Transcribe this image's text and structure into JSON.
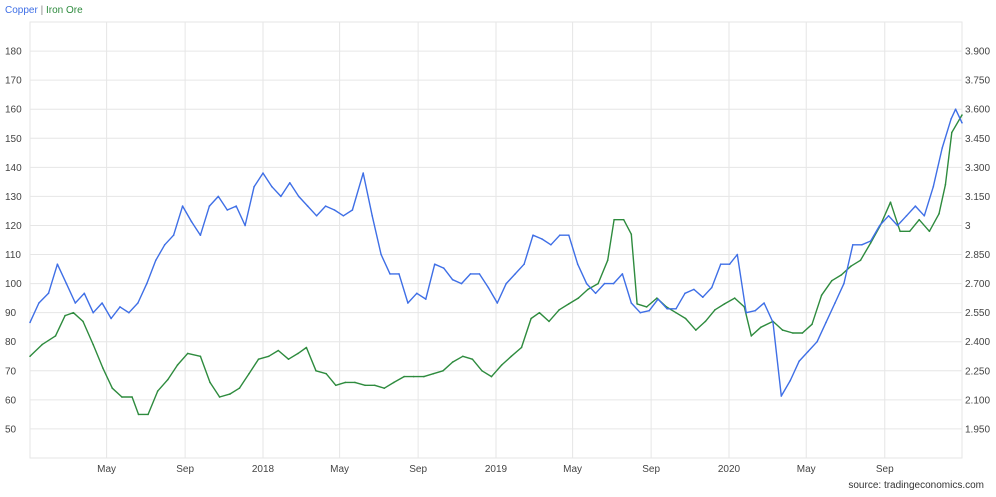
{
  "legend": {
    "series_a": "Copper",
    "separator": "|",
    "series_b": "Iron Ore"
  },
  "source": "source: tradingeconomics.com",
  "colors": {
    "copper": "#3f6fe6",
    "iron_ore": "#2e8b3e",
    "grid": "#e6e6e6"
  },
  "chart_data": {
    "type": "line",
    "grid": true,
    "legend_position": "top-left",
    "x_ticks": [
      "May",
      "Sep",
      "2018",
      "May",
      "Sep",
      "2019",
      "May",
      "Sep",
      "2020",
      "May",
      "Sep"
    ],
    "x_tick_dates": [
      "2017-05-01",
      "2017-09-01",
      "2018-01-01",
      "2018-05-01",
      "2018-09-01",
      "2019-01-01",
      "2019-05-01",
      "2019-09-01",
      "2020-01-01",
      "2020-05-01",
      "2020-09-01"
    ],
    "x_range": [
      "2017-01-01",
      "2020-12-31"
    ],
    "left_axis": {
      "ticks": [
        "50",
        "60",
        "70",
        "80",
        "90",
        "100",
        "110",
        "120",
        "130",
        "140",
        "150",
        "160",
        "170",
        "180"
      ],
      "ylim": [
        40,
        190
      ]
    },
    "right_axis": {
      "ticks": [
        "1.950",
        "2.100",
        "2.250",
        "2.400",
        "2.550",
        "2.700",
        "2.850",
        "3",
        "3.150",
        "3.300",
        "3.450",
        "3.600",
        "3.750",
        "3.900"
      ],
      "ylim": [
        1.8,
        4.05
      ]
    },
    "series": [
      {
        "name": "Iron Ore",
        "axis": "left",
        "points": [
          [
            "2017-01-01",
            75
          ],
          [
            "2017-01-20",
            79
          ],
          [
            "2017-02-10",
            82
          ],
          [
            "2017-02-25",
            89
          ],
          [
            "2017-03-10",
            90
          ],
          [
            "2017-03-25",
            87
          ],
          [
            "2017-04-10",
            79
          ],
          [
            "2017-04-25",
            71
          ],
          [
            "2017-05-10",
            64
          ],
          [
            "2017-05-25",
            61
          ],
          [
            "2017-06-10",
            61
          ],
          [
            "2017-06-20",
            55
          ],
          [
            "2017-07-05",
            55
          ],
          [
            "2017-07-20",
            63
          ],
          [
            "2017-08-05",
            67
          ],
          [
            "2017-08-20",
            72
          ],
          [
            "2017-09-05",
            76
          ],
          [
            "2017-09-25",
            75
          ],
          [
            "2017-10-10",
            66
          ],
          [
            "2017-10-25",
            61
          ],
          [
            "2017-11-10",
            62
          ],
          [
            "2017-11-25",
            64
          ],
          [
            "2017-12-10",
            69
          ],
          [
            "2017-12-25",
            74
          ],
          [
            "2018-01-10",
            75
          ],
          [
            "2018-01-25",
            77
          ],
          [
            "2018-02-10",
            74
          ],
          [
            "2018-02-25",
            76
          ],
          [
            "2018-03-10",
            78
          ],
          [
            "2018-03-25",
            70
          ],
          [
            "2018-04-10",
            69
          ],
          [
            "2018-04-25",
            65
          ],
          [
            "2018-05-10",
            66
          ],
          [
            "2018-05-25",
            66
          ],
          [
            "2018-06-10",
            65
          ],
          [
            "2018-06-25",
            65
          ],
          [
            "2018-07-10",
            64
          ],
          [
            "2018-07-25",
            66
          ],
          [
            "2018-08-10",
            68
          ],
          [
            "2018-08-25",
            68
          ],
          [
            "2018-09-10",
            68
          ],
          [
            "2018-09-25",
            69
          ],
          [
            "2018-10-10",
            70
          ],
          [
            "2018-10-25",
            73
          ],
          [
            "2018-11-10",
            75
          ],
          [
            "2018-11-25",
            74
          ],
          [
            "2018-12-10",
            70
          ],
          [
            "2018-12-25",
            68
          ],
          [
            "2019-01-10",
            72
          ],
          [
            "2019-01-25",
            75
          ],
          [
            "2019-02-10",
            78
          ],
          [
            "2019-02-25",
            88
          ],
          [
            "2019-03-10",
            90
          ],
          [
            "2019-03-25",
            87
          ],
          [
            "2019-04-10",
            91
          ],
          [
            "2019-04-25",
            93
          ],
          [
            "2019-05-10",
            95
          ],
          [
            "2019-05-25",
            98
          ],
          [
            "2019-06-10",
            100
          ],
          [
            "2019-06-25",
            108
          ],
          [
            "2019-07-05",
            122
          ],
          [
            "2019-07-20",
            122
          ],
          [
            "2019-08-01",
            117
          ],
          [
            "2019-08-10",
            93
          ],
          [
            "2019-08-25",
            92
          ],
          [
            "2019-09-10",
            95
          ],
          [
            "2019-09-25",
            92
          ],
          [
            "2019-10-10",
            90
          ],
          [
            "2019-10-25",
            88
          ],
          [
            "2019-11-10",
            84
          ],
          [
            "2019-11-25",
            87
          ],
          [
            "2019-12-10",
            91
          ],
          [
            "2019-12-25",
            93
          ],
          [
            "2020-01-10",
            95
          ],
          [
            "2020-01-25",
            92
          ],
          [
            "2020-02-05",
            82
          ],
          [
            "2020-02-20",
            85
          ],
          [
            "2020-03-10",
            87
          ],
          [
            "2020-03-25",
            84
          ],
          [
            "2020-04-10",
            83
          ],
          [
            "2020-04-25",
            83
          ],
          [
            "2020-05-10",
            86
          ],
          [
            "2020-05-25",
            96
          ],
          [
            "2020-06-10",
            101
          ],
          [
            "2020-06-25",
            103
          ],
          [
            "2020-07-10",
            106
          ],
          [
            "2020-07-25",
            108
          ],
          [
            "2020-08-10",
            114
          ],
          [
            "2020-08-25",
            120
          ],
          [
            "2020-09-10",
            128
          ],
          [
            "2020-09-25",
            118
          ],
          [
            "2020-10-10",
            118
          ],
          [
            "2020-10-25",
            122
          ],
          [
            "2020-11-10",
            118
          ],
          [
            "2020-11-25",
            124
          ],
          [
            "2020-12-05",
            134
          ],
          [
            "2020-12-15",
            152
          ],
          [
            "2020-12-31",
            158
          ]
        ]
      },
      {
        "name": "Copper",
        "axis": "right",
        "points": [
          [
            "2017-01-01",
            2.5
          ],
          [
            "2017-01-15",
            2.6
          ],
          [
            "2017-01-30",
            2.65
          ],
          [
            "2017-02-13",
            2.8
          ],
          [
            "2017-02-27",
            2.7
          ],
          [
            "2017-03-13",
            2.6
          ],
          [
            "2017-03-27",
            2.65
          ],
          [
            "2017-04-10",
            2.55
          ],
          [
            "2017-04-24",
            2.6
          ],
          [
            "2017-05-08",
            2.52
          ],
          [
            "2017-05-22",
            2.58
          ],
          [
            "2017-06-05",
            2.55
          ],
          [
            "2017-06-19",
            2.6
          ],
          [
            "2017-07-03",
            2.7
          ],
          [
            "2017-07-17",
            2.82
          ],
          [
            "2017-07-31",
            2.9
          ],
          [
            "2017-08-14",
            2.95
          ],
          [
            "2017-08-28",
            3.1
          ],
          [
            "2017-09-11",
            3.02
          ],
          [
            "2017-09-25",
            2.95
          ],
          [
            "2017-10-09",
            3.1
          ],
          [
            "2017-10-23",
            3.15
          ],
          [
            "2017-11-06",
            3.08
          ],
          [
            "2017-11-20",
            3.1
          ],
          [
            "2017-12-04",
            3.0
          ],
          [
            "2017-12-18",
            3.2
          ],
          [
            "2018-01-01",
            3.27
          ],
          [
            "2018-01-15",
            3.2
          ],
          [
            "2018-01-29",
            3.15
          ],
          [
            "2018-02-12",
            3.22
          ],
          [
            "2018-02-26",
            3.15
          ],
          [
            "2018-03-12",
            3.1
          ],
          [
            "2018-03-26",
            3.05
          ],
          [
            "2018-04-09",
            3.1
          ],
          [
            "2018-04-23",
            3.08
          ],
          [
            "2018-05-07",
            3.05
          ],
          [
            "2018-05-21",
            3.08
          ],
          [
            "2018-06-07",
            3.27
          ],
          [
            "2018-06-21",
            3.05
          ],
          [
            "2018-07-05",
            2.85
          ],
          [
            "2018-07-19",
            2.75
          ],
          [
            "2018-08-02",
            2.75
          ],
          [
            "2018-08-16",
            2.6
          ],
          [
            "2018-08-30",
            2.65
          ],
          [
            "2018-09-13",
            2.62
          ],
          [
            "2018-09-27",
            2.8
          ],
          [
            "2018-10-11",
            2.78
          ],
          [
            "2018-10-25",
            2.72
          ],
          [
            "2018-11-08",
            2.7
          ],
          [
            "2018-11-22",
            2.75
          ],
          [
            "2018-12-06",
            2.75
          ],
          [
            "2018-12-20",
            2.68
          ],
          [
            "2019-01-03",
            2.6
          ],
          [
            "2019-01-17",
            2.7
          ],
          [
            "2019-01-31",
            2.75
          ],
          [
            "2019-02-14",
            2.8
          ],
          [
            "2019-02-28",
            2.95
          ],
          [
            "2019-03-14",
            2.93
          ],
          [
            "2019-03-28",
            2.9
          ],
          [
            "2019-04-11",
            2.95
          ],
          [
            "2019-04-25",
            2.95
          ],
          [
            "2019-05-09",
            2.8
          ],
          [
            "2019-05-23",
            2.7
          ],
          [
            "2019-06-06",
            2.65
          ],
          [
            "2019-06-20",
            2.7
          ],
          [
            "2019-07-04",
            2.7
          ],
          [
            "2019-07-18",
            2.75
          ],
          [
            "2019-08-01",
            2.6
          ],
          [
            "2019-08-15",
            2.55
          ],
          [
            "2019-08-29",
            2.56
          ],
          [
            "2019-09-12",
            2.62
          ],
          [
            "2019-09-26",
            2.57
          ],
          [
            "2019-10-10",
            2.57
          ],
          [
            "2019-10-24",
            2.65
          ],
          [
            "2019-11-07",
            2.67
          ],
          [
            "2019-11-21",
            2.63
          ],
          [
            "2019-12-05",
            2.68
          ],
          [
            "2019-12-19",
            2.8
          ],
          [
            "2020-01-02",
            2.8
          ],
          [
            "2020-01-14",
            2.85
          ],
          [
            "2020-01-28",
            2.55
          ],
          [
            "2020-02-11",
            2.56
          ],
          [
            "2020-02-25",
            2.6
          ],
          [
            "2020-03-10",
            2.5
          ],
          [
            "2020-03-23",
            2.12
          ],
          [
            "2020-04-06",
            2.2
          ],
          [
            "2020-04-20",
            2.3
          ],
          [
            "2020-05-04",
            2.35
          ],
          [
            "2020-05-18",
            2.4
          ],
          [
            "2020-06-01",
            2.5
          ],
          [
            "2020-06-15",
            2.6
          ],
          [
            "2020-06-29",
            2.7
          ],
          [
            "2020-07-13",
            2.9
          ],
          [
            "2020-07-27",
            2.9
          ],
          [
            "2020-08-10",
            2.92
          ],
          [
            "2020-08-24",
            3.0
          ],
          [
            "2020-09-07",
            3.05
          ],
          [
            "2020-09-21",
            3.0
          ],
          [
            "2020-10-05",
            3.05
          ],
          [
            "2020-10-19",
            3.1
          ],
          [
            "2020-11-02",
            3.05
          ],
          [
            "2020-11-16",
            3.2
          ],
          [
            "2020-11-30",
            3.4
          ],
          [
            "2020-12-14",
            3.55
          ],
          [
            "2020-12-21",
            3.6
          ],
          [
            "2020-12-31",
            3.53
          ]
        ]
      }
    ]
  }
}
